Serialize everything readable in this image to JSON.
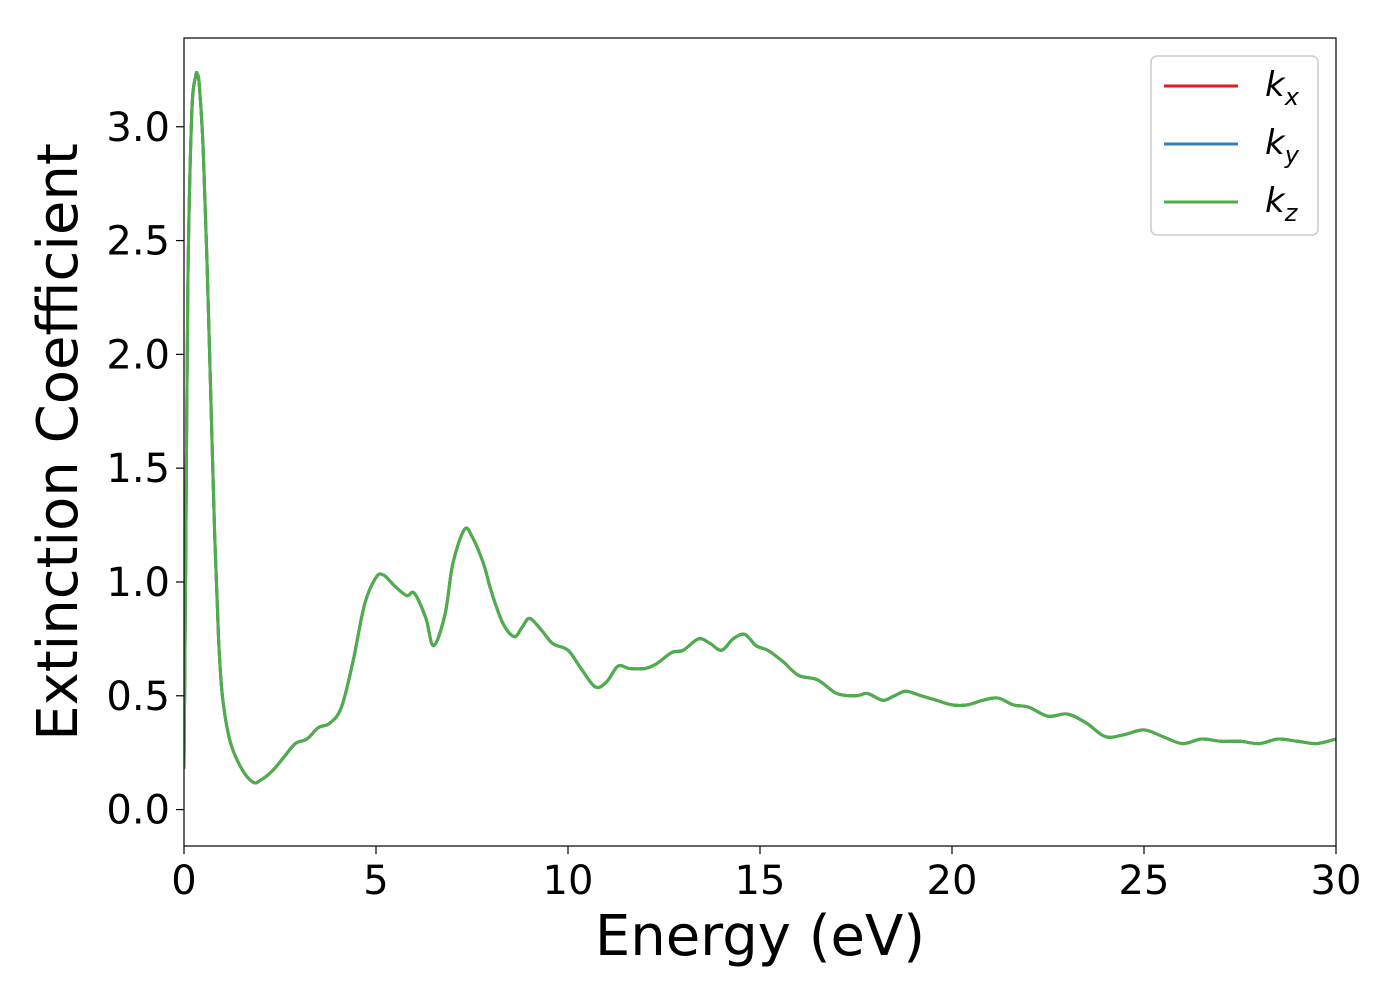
{
  "chart_data": {
    "type": "line",
    "xlabel": "Energy (eV)",
    "ylabel": "Extinction Coefficient",
    "xlim": [
      0,
      30
    ],
    "ylim": [
      -0.16,
      3.39
    ],
    "xticks": [
      0,
      5,
      10,
      15,
      20,
      25,
      30
    ],
    "xtick_labels": [
      "0",
      "5",
      "10",
      "15",
      "20",
      "25",
      "30"
    ],
    "yticks": [
      0.0,
      0.5,
      1.0,
      1.5,
      2.0,
      2.5,
      3.0
    ],
    "ytick_labels": [
      "0.0",
      "0.5",
      "1.0",
      "1.5",
      "2.0",
      "2.5",
      "3.0"
    ],
    "grid": false,
    "legend_position": "top-right",
    "x": [
      0.0,
      0.05,
      0.1,
      0.2,
      0.3,
      0.35,
      0.4,
      0.5,
      0.6,
      0.7,
      0.8,
      0.9,
      1.0,
      1.2,
      1.5,
      1.8,
      2.0,
      2.3,
      2.6,
      2.9,
      3.2,
      3.5,
      3.8,
      4.1,
      4.4,
      4.7,
      5.0,
      5.2,
      5.5,
      5.8,
      6.0,
      6.3,
      6.5,
      6.8,
      7.0,
      7.3,
      7.5,
      7.8,
      8.0,
      8.3,
      8.6,
      8.8,
      9.0,
      9.3,
      9.6,
      10.0,
      10.3,
      10.7,
      11.0,
      11.3,
      11.6,
      12.0,
      12.3,
      12.7,
      13.0,
      13.4,
      13.7,
      14.0,
      14.3,
      14.6,
      14.9,
      15.2,
      15.6,
      16.0,
      16.5,
      17.0,
      17.5,
      17.8,
      18.2,
      18.5,
      18.8,
      19.2,
      19.6,
      20.0,
      20.4,
      20.8,
      21.2,
      21.6,
      22.0,
      22.5,
      23.0,
      23.5,
      24.0,
      24.5,
      25.0,
      25.5,
      26.0,
      26.5,
      27.0,
      27.5,
      28.0,
      28.5,
      29.0,
      29.5,
      30.0
    ],
    "series": [
      {
        "name": "k_x",
        "label_base": "k",
        "label_sub": "x",
        "color": "#e41a1c",
        "y": [
          0.18,
          1.2,
          2.3,
          3.05,
          3.22,
          3.23,
          3.18,
          2.9,
          2.4,
          1.8,
          1.2,
          0.75,
          0.5,
          0.3,
          0.18,
          0.12,
          0.13,
          0.17,
          0.23,
          0.29,
          0.31,
          0.36,
          0.38,
          0.45,
          0.65,
          0.9,
          1.02,
          1.03,
          0.98,
          0.94,
          0.95,
          0.84,
          0.72,
          0.86,
          1.08,
          1.23,
          1.2,
          1.08,
          0.96,
          0.82,
          0.76,
          0.8,
          0.84,
          0.79,
          0.73,
          0.7,
          0.63,
          0.54,
          0.56,
          0.63,
          0.62,
          0.62,
          0.64,
          0.69,
          0.7,
          0.75,
          0.73,
          0.7,
          0.75,
          0.77,
          0.72,
          0.7,
          0.65,
          0.59,
          0.57,
          0.51,
          0.5,
          0.51,
          0.48,
          0.5,
          0.52,
          0.5,
          0.48,
          0.46,
          0.46,
          0.48,
          0.49,
          0.46,
          0.45,
          0.41,
          0.42,
          0.38,
          0.32,
          0.33,
          0.35,
          0.32,
          0.29,
          0.31,
          0.3,
          0.3,
          0.29,
          0.31,
          0.3,
          0.29,
          0.31
        ]
      },
      {
        "name": "k_y",
        "label_base": "k",
        "label_sub": "y",
        "color": "#377eb8",
        "y": [
          0.18,
          1.2,
          2.3,
          3.05,
          3.22,
          3.23,
          3.18,
          2.9,
          2.4,
          1.8,
          1.2,
          0.75,
          0.5,
          0.3,
          0.18,
          0.12,
          0.13,
          0.17,
          0.23,
          0.29,
          0.31,
          0.36,
          0.38,
          0.45,
          0.65,
          0.9,
          1.02,
          1.03,
          0.98,
          0.94,
          0.95,
          0.84,
          0.72,
          0.86,
          1.08,
          1.23,
          1.2,
          1.08,
          0.96,
          0.82,
          0.76,
          0.8,
          0.84,
          0.79,
          0.73,
          0.7,
          0.63,
          0.54,
          0.56,
          0.63,
          0.62,
          0.62,
          0.64,
          0.69,
          0.7,
          0.75,
          0.73,
          0.7,
          0.75,
          0.77,
          0.72,
          0.7,
          0.65,
          0.59,
          0.57,
          0.51,
          0.5,
          0.51,
          0.48,
          0.5,
          0.52,
          0.5,
          0.48,
          0.46,
          0.46,
          0.48,
          0.49,
          0.46,
          0.45,
          0.41,
          0.42,
          0.38,
          0.32,
          0.33,
          0.35,
          0.32,
          0.29,
          0.31,
          0.3,
          0.3,
          0.29,
          0.31,
          0.3,
          0.29,
          0.31
        ]
      },
      {
        "name": "k_z",
        "label_base": "k",
        "label_sub": "z",
        "color": "#4daf4a",
        "y": [
          0.18,
          1.2,
          2.3,
          3.05,
          3.22,
          3.23,
          3.18,
          2.9,
          2.4,
          1.8,
          1.2,
          0.75,
          0.5,
          0.3,
          0.18,
          0.12,
          0.13,
          0.17,
          0.23,
          0.29,
          0.31,
          0.36,
          0.38,
          0.45,
          0.65,
          0.9,
          1.02,
          1.03,
          0.98,
          0.94,
          0.95,
          0.84,
          0.72,
          0.86,
          1.08,
          1.23,
          1.2,
          1.08,
          0.96,
          0.82,
          0.76,
          0.8,
          0.84,
          0.79,
          0.73,
          0.7,
          0.63,
          0.54,
          0.56,
          0.63,
          0.62,
          0.62,
          0.64,
          0.69,
          0.7,
          0.75,
          0.73,
          0.7,
          0.75,
          0.77,
          0.72,
          0.7,
          0.65,
          0.59,
          0.57,
          0.51,
          0.5,
          0.51,
          0.48,
          0.5,
          0.52,
          0.5,
          0.48,
          0.46,
          0.46,
          0.48,
          0.49,
          0.46,
          0.45,
          0.41,
          0.42,
          0.38,
          0.32,
          0.33,
          0.35,
          0.32,
          0.29,
          0.31,
          0.3,
          0.3,
          0.29,
          0.31,
          0.3,
          0.29,
          0.31
        ]
      }
    ]
  }
}
